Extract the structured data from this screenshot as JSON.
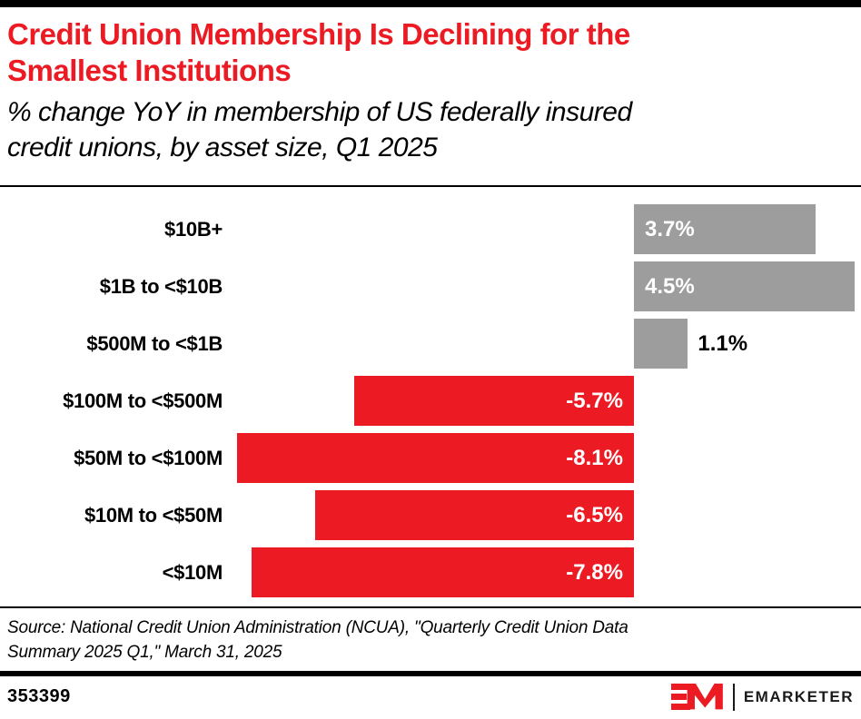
{
  "header": {
    "title_line1": "Credit Union Membership Is Declining for the",
    "title_line2": "Smallest Institutions",
    "subtitle_line1": "% change YoY in membership of US federally insured",
    "subtitle_line2": "credit unions, by asset size, Q1 2025"
  },
  "chart_data": {
    "type": "bar",
    "orientation": "horizontal",
    "title": "Credit Union Membership Is Declining for the Smallest Institutions",
    "subtitle": "% change YoY in membership of US federally insured credit unions, by asset size, Q1 2025",
    "categories": [
      "$10B+",
      "$1B to <$10B",
      "$500M to <$1B",
      "$100M to <$500M",
      "$50M to <$100M",
      "$10M to <$50M",
      "<$10M"
    ],
    "values": [
      3.7,
      4.5,
      1.1,
      -5.7,
      -8.1,
      -6.5,
      -7.8
    ],
    "value_labels": [
      "3.7%",
      "4.5%",
      "1.1%",
      "-5.7%",
      "-8.1%",
      "-6.5%",
      "-7.8%"
    ],
    "xlim": [
      -8.7,
      4.6
    ],
    "grid": false,
    "legend": "none",
    "axis_ticks_visible": false,
    "bar_colors": {
      "positive": "#9D9D9D",
      "negative": "#EC1B23"
    },
    "value_label_color_inside": "#FFFFFF",
    "value_label_color_outside": "#000000"
  },
  "colors": {
    "accent_red": "#EC1B23",
    "bar_gray": "#9D9D9D",
    "rule_black": "#000000"
  },
  "footer": {
    "source_line1": "Source: National Credit Union Administration (NCUA), \"Quarterly Credit Union Data",
    "source_line2": "Summary 2025 Q1,\" March 31, 2025",
    "chart_id": "353399",
    "brand_name": "EMARKETER",
    "brand_mark": "EM"
  }
}
